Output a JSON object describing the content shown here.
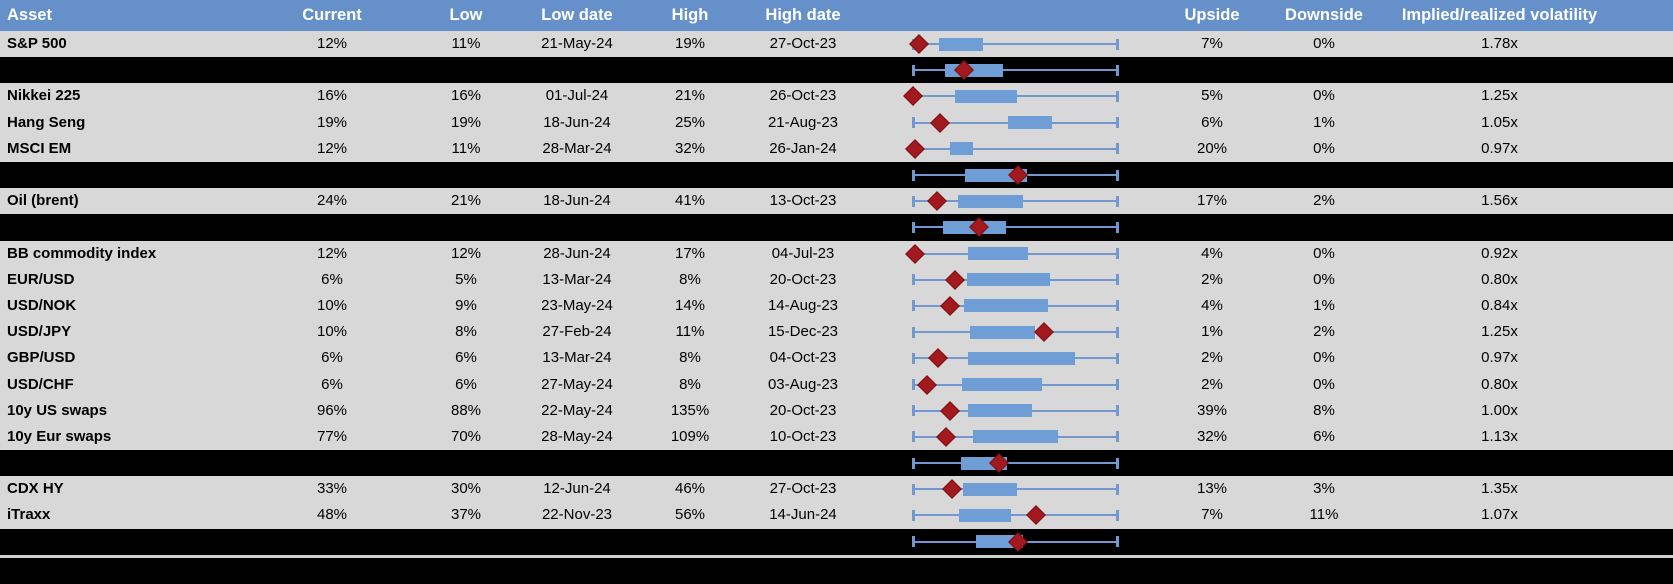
{
  "colors": {
    "header_blue": "#6590CA",
    "row_gray": "#D8D8D8",
    "separator_black": "#000000",
    "box_fill": "#6F9DD5",
    "whisker_blue": "#7298D2",
    "diamond_dark_red": "#A21A1D"
  },
  "chart_data": {
    "type": "table",
    "description": "Implied volatility table with embedded box-and-whisker plots (blue box = interquartile range over period, whiskers = low/high range, dark-red diamond = current level). Box geometry given as fractions 0-1 of the whisker span.",
    "columns": [
      "Asset",
      "Current",
      "Low",
      "Low date",
      "High",
      "High date",
      "",
      "Upside",
      "Downside",
      "Implied/realized volatility"
    ],
    "rows": [
      {
        "type": "data",
        "asset": "S&P 500",
        "current": "12%",
        "low": "11%",
        "low_date": "21-May-24",
        "high": "19%",
        "high_date": "27-Oct-23",
        "upside": "7%",
        "downside": "0%",
        "implied_realized": "1.78x",
        "box": {
          "min": 0,
          "q1": 0.127,
          "q3": 0.343,
          "current": 0.029,
          "max": 1
        }
      },
      {
        "type": "separator",
        "box": {
          "min": 0,
          "q1": 0.157,
          "q3": 0.441,
          "current": 0.25,
          "max": 1
        }
      },
      {
        "type": "data",
        "asset": "Nikkei 225",
        "current": "16%",
        "low": "16%",
        "low_date": "01-Jul-24",
        "high": "21%",
        "high_date": "26-Oct-23",
        "upside": "5%",
        "downside": "0%",
        "implied_realized": "1.25x",
        "box": {
          "min": 0,
          "q1": 0.206,
          "q3": 0.51,
          "current": 0.0,
          "max": 1
        }
      },
      {
        "type": "data",
        "asset": "Hang Seng",
        "current": "19%",
        "low": "19%",
        "low_date": "18-Jun-24",
        "high": "25%",
        "high_date": "21-Aug-23",
        "upside": "6%",
        "downside": "1%",
        "implied_realized": "1.05x",
        "box": {
          "min": 0,
          "q1": 0.466,
          "q3": 0.681,
          "current": 0.132,
          "max": 1
        }
      },
      {
        "type": "data",
        "asset": "MSCI EM",
        "current": "12%",
        "low": "11%",
        "low_date": "28-Mar-24",
        "high": "32%",
        "high_date": "26-Jan-24",
        "upside": "20%",
        "downside": "0%",
        "implied_realized": "0.97x",
        "box": {
          "min": 0,
          "q1": 0.181,
          "q3": 0.294,
          "current": 0.01,
          "max": 1
        }
      },
      {
        "type": "separator",
        "box": {
          "min": 0,
          "q1": 0.255,
          "q3": 0.559,
          "current": 0.515,
          "max": 1
        }
      },
      {
        "type": "data",
        "asset": "Oil (brent)",
        "current": "24%",
        "low": "21%",
        "low_date": "18-Jun-24",
        "high": "41%",
        "high_date": "13-Oct-23",
        "upside": "17%",
        "downside": "2%",
        "implied_realized": "1.56x",
        "box": {
          "min": 0,
          "q1": 0.22,
          "q3": 0.539,
          "current": 0.118,
          "max": 1
        }
      },
      {
        "type": "separator",
        "box": {
          "min": 0,
          "q1": 0.147,
          "q3": 0.456,
          "current": 0.324,
          "max": 1
        }
      },
      {
        "type": "data",
        "asset": "BB commodity index",
        "current": "12%",
        "low": "12%",
        "low_date": "28-Jun-24",
        "high": "17%",
        "high_date": "04-Jul-23",
        "upside": "4%",
        "downside": "0%",
        "implied_realized": "0.92x",
        "box": {
          "min": 0,
          "q1": 0.27,
          "q3": 0.564,
          "current": 0.01,
          "max": 1
        }
      },
      {
        "type": "data",
        "asset": "EUR/USD",
        "current": "6%",
        "low": "5%",
        "low_date": "13-Mar-24",
        "high": "8%",
        "high_date": "20-Oct-23",
        "upside": "2%",
        "downside": "0%",
        "implied_realized": "0.80x",
        "box": {
          "min": 0,
          "q1": 0.265,
          "q3": 0.672,
          "current": 0.206,
          "max": 1
        }
      },
      {
        "type": "data",
        "asset": "USD/NOK",
        "current": "10%",
        "low": "9%",
        "low_date": "23-May-24",
        "high": "14%",
        "high_date": "14-Aug-23",
        "upside": "4%",
        "downside": "1%",
        "implied_realized": "0.84x",
        "box": {
          "min": 0,
          "q1": 0.25,
          "q3": 0.662,
          "current": 0.181,
          "max": 1
        }
      },
      {
        "type": "data",
        "asset": "USD/JPY",
        "current": "10%",
        "low": "8%",
        "low_date": "27-Feb-24",
        "high": "11%",
        "high_date": "15-Dec-23",
        "upside": "1%",
        "downside": "2%",
        "implied_realized": "1.25x",
        "box": {
          "min": 0,
          "q1": 0.279,
          "q3": 0.598,
          "current": 0.642,
          "max": 1
        }
      },
      {
        "type": "data",
        "asset": "GBP/USD",
        "current": "6%",
        "low": "6%",
        "low_date": "13-Mar-24",
        "high": "8%",
        "high_date": "04-Oct-23",
        "upside": "2%",
        "downside": "0%",
        "implied_realized": "0.97x",
        "box": {
          "min": 0,
          "q1": 0.27,
          "q3": 0.794,
          "current": 0.123,
          "max": 1
        }
      },
      {
        "type": "data",
        "asset": "USD/CHF",
        "current": "6%",
        "low": "6%",
        "low_date": "27-May-24",
        "high": "8%",
        "high_date": "03-Aug-23",
        "upside": "2%",
        "downside": "0%",
        "implied_realized": "0.80x",
        "box": {
          "min": 0,
          "q1": 0.24,
          "q3": 0.632,
          "current": 0.069,
          "max": 1
        }
      },
      {
        "type": "data",
        "asset": "10y US swaps",
        "current": "96%",
        "low": "88%",
        "low_date": "22-May-24",
        "high": "135%",
        "high_date": "20-Oct-23",
        "upside": "39%",
        "downside": "8%",
        "implied_realized": "1.00x",
        "box": {
          "min": 0,
          "q1": 0.27,
          "q3": 0.583,
          "current": 0.181,
          "max": 1
        }
      },
      {
        "type": "data",
        "asset": "10y Eur swaps",
        "current": "77%",
        "low": "70%",
        "low_date": "28-May-24",
        "high": "109%",
        "high_date": "10-Oct-23",
        "upside": "32%",
        "downside": "6%",
        "implied_realized": "1.13x",
        "box": {
          "min": 0,
          "q1": 0.294,
          "q3": 0.711,
          "current": 0.162,
          "max": 1
        }
      },
      {
        "type": "separator",
        "box": {
          "min": 0,
          "q1": 0.235,
          "q3": 0.461,
          "current": 0.422,
          "max": 1
        }
      },
      {
        "type": "data",
        "asset": "CDX HY",
        "current": "33%",
        "low": "30%",
        "low_date": "12-Jun-24",
        "high": "46%",
        "high_date": "27-Oct-23",
        "upside": "13%",
        "downside": "3%",
        "implied_realized": "1.35x",
        "box": {
          "min": 0,
          "q1": 0.245,
          "q3": 0.51,
          "current": 0.191,
          "max": 1
        }
      },
      {
        "type": "data",
        "asset": "iTraxx",
        "current": "48%",
        "low": "37%",
        "low_date": "22-Nov-23",
        "high": "56%",
        "high_date": "14-Jun-24",
        "upside": "7%",
        "downside": "11%",
        "implied_realized": "1.07x",
        "box": {
          "min": 0,
          "q1": 0.225,
          "q3": 0.48,
          "current": 0.603,
          "max": 1
        }
      },
      {
        "type": "separator",
        "box": {
          "min": 0,
          "q1": 0.309,
          "q3": 0.539,
          "current": 0.515,
          "max": 1
        }
      }
    ]
  }
}
